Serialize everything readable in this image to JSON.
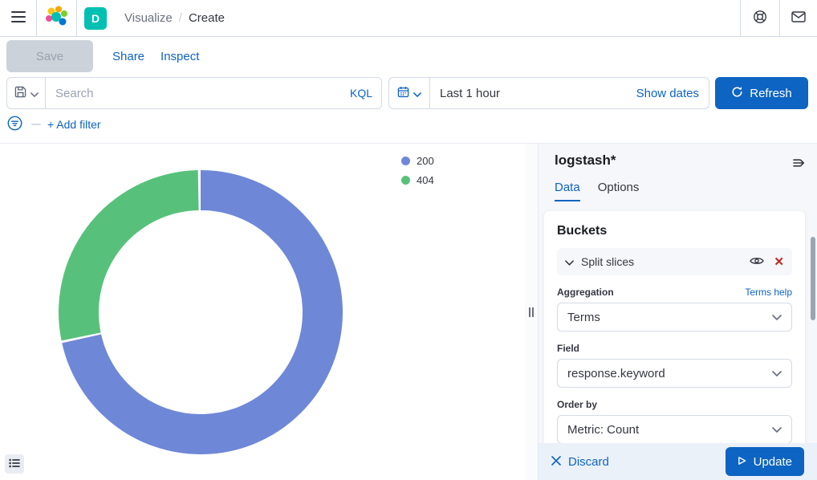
{
  "header": {
    "space_badge": "D",
    "breadcrumbs": [
      {
        "label": "Visualize"
      },
      {
        "label": "Create"
      }
    ],
    "breadcrumb_separator": "/"
  },
  "top_toolbar": {
    "save_label": "Save",
    "share_label": "Share",
    "inspect_label": "Inspect"
  },
  "query_bar": {
    "search_placeholder": "Search",
    "query_language": "KQL",
    "time_range": "Last 1 hour",
    "show_dates_label": "Show dates",
    "refresh_label": "Refresh"
  },
  "filter_bar": {
    "add_filter_label": "+ Add filter"
  },
  "chart_data": {
    "type": "pie",
    "donut": true,
    "title": "",
    "categories": [
      "200",
      "404"
    ],
    "values_percent": [
      71.8,
      28.2
    ],
    "colors": [
      "#6f87d7",
      "#57c17b"
    ],
    "legend_position": "right",
    "start_angle_deg": 0,
    "direction": "clockwise"
  },
  "editor": {
    "index_pattern": "logstash*",
    "tabs": [
      {
        "label": "Data",
        "active": true
      },
      {
        "label": "Options",
        "active": false
      }
    ],
    "buckets_section": {
      "title": "Buckets",
      "split_row_label": "Split slices"
    },
    "aggregation": {
      "label": "Aggregation",
      "help_link": "Terms help",
      "value": "Terms"
    },
    "field": {
      "label": "Field",
      "value": "response.keyword"
    },
    "order_by": {
      "label": "Order by",
      "value": "Metric: Count"
    },
    "footer": {
      "discard_label": "Discard",
      "update_label": "Update"
    }
  },
  "colors": {
    "accent_blue": "#0d64c2",
    "danger_red": "#bd271e",
    "space_badge_teal": "#00bfb3",
    "panel_bg": "#f5f7fa",
    "footer_bg": "#ebf1f9",
    "disabled_button_bg": "#ccd2da"
  },
  "icons": {
    "menu": "hamburger",
    "elastic-logo": "colored circles",
    "help": "lifebuoy",
    "mail": "envelope",
    "saved-query": "floppy disk",
    "chevron-down": "v",
    "calendar": "grid calendar",
    "refresh": "circular arrow",
    "filter": "circle with lines",
    "legend-toggle": "bulleted list",
    "collapse-panel": "lines with right arrow",
    "eye": "eye outline",
    "remove": "✕",
    "discard": "✕",
    "play": "▷",
    "resize-handle": "‖"
  }
}
